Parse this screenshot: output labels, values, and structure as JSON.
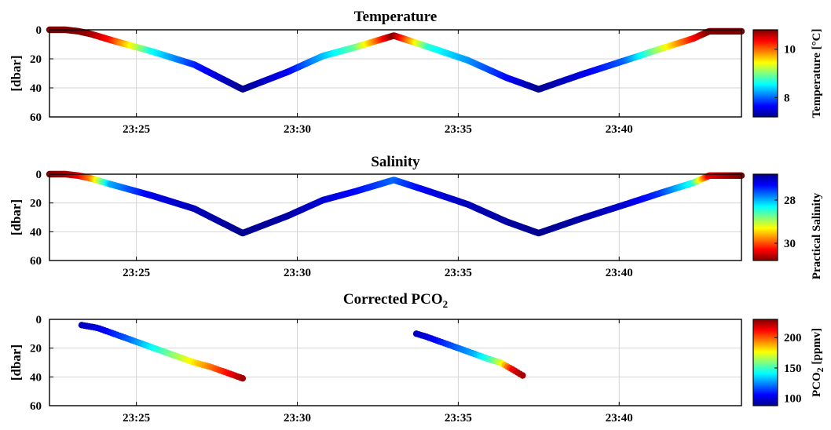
{
  "chart_data": [
    {
      "type": "scatter",
      "title": "Temperature",
      "title_sub": "",
      "ylabel": "[dbar]",
      "x_ticks": [
        "23:25",
        "23:30",
        "23:35",
        "23:40"
      ],
      "x_tick_minutes": [
        25,
        30,
        35,
        40
      ],
      "xlim_minutes": [
        22.3,
        43.8
      ],
      "y_ticks": [
        "0",
        "20",
        "40",
        "60"
      ],
      "y_tick_values": [
        0,
        20,
        40,
        60
      ],
      "ylim": [
        0,
        60
      ],
      "y_reversed": true,
      "grid": true,
      "colorbar": {
        "label": "Temperature [°C]",
        "ticks": [
          "10",
          "8"
        ],
        "tick_values": [
          10,
          8
        ],
        "range": [
          7.2,
          10.8
        ],
        "colormap": "jet",
        "reversed": false
      },
      "series": [
        {
          "x_minutes": [
            22.3,
            22.8,
            23.2,
            23.6,
            24.2,
            25.5,
            26.8,
            28.3,
            29.7,
            30.8,
            31.8,
            33.0,
            34.1,
            35.3,
            36.5,
            37.5,
            38.8,
            40.2,
            41.3,
            42.3,
            42.8,
            43.8
          ],
          "depth": [
            0,
            0,
            1,
            3,
            7,
            15,
            24,
            41,
            29,
            18,
            12,
            4,
            12,
            21,
            33,
            41,
            31,
            21,
            13,
            6,
            1,
            1
          ],
          "value": [
            10.8,
            10.8,
            10.8,
            10.7,
            10.3,
            8.6,
            7.8,
            7.2,
            7.6,
            8.3,
            8.9,
            10.8,
            8.7,
            8.2,
            7.7,
            7.2,
            7.5,
            8.0,
            9.2,
            10.3,
            10.8,
            10.8
          ]
        }
      ]
    },
    {
      "type": "scatter",
      "title": "Salinity",
      "title_sub": "",
      "ylabel": "[dbar]",
      "x_ticks": [
        "23:25",
        "23:30",
        "23:35",
        "23:40"
      ],
      "x_tick_minutes": [
        25,
        30,
        35,
        40
      ],
      "xlim_minutes": [
        22.3,
        43.8
      ],
      "y_ticks": [
        "0",
        "20",
        "40",
        "60"
      ],
      "y_tick_values": [
        0,
        20,
        40,
        60
      ],
      "ylim": [
        0,
        60
      ],
      "y_reversed": true,
      "grid": true,
      "colorbar": {
        "label": "Practical Salinity",
        "ticks": [
          "28",
          "30"
        ],
        "tick_values": [
          28,
          30
        ],
        "range": [
          26.8,
          30.8
        ],
        "colormap": "jet",
        "reversed": true
      },
      "series": [
        {
          "x_minutes": [
            22.3,
            22.8,
            23.2,
            23.6,
            24.2,
            25.5,
            26.8,
            28.3,
            29.7,
            30.8,
            31.8,
            33.0,
            34.1,
            35.3,
            36.5,
            37.5,
            38.8,
            40.2,
            41.3,
            42.3,
            42.8,
            43.8
          ],
          "depth": [
            0,
            0,
            1,
            3,
            7,
            15,
            24,
            41,
            29,
            18,
            12,
            4,
            12,
            21,
            33,
            41,
            31,
            21,
            13,
            6,
            1,
            1
          ],
          "value": [
            26.8,
            26.9,
            27.2,
            27.8,
            29.6,
            30.4,
            30.6,
            30.8,
            30.7,
            30.5,
            30.3,
            29.9,
            30.4,
            30.6,
            30.7,
            30.8,
            30.7,
            30.5,
            30.1,
            29.2,
            27.2,
            26.8
          ]
        }
      ]
    },
    {
      "type": "scatter",
      "title": "Corrected PCO",
      "title_sub": "2",
      "ylabel": "[dbar]",
      "x_ticks": [
        "23:25",
        "23:30",
        "23:35",
        "23:40"
      ],
      "x_tick_minutes": [
        25,
        30,
        35,
        40
      ],
      "xlim_minutes": [
        22.3,
        43.8
      ],
      "y_ticks": [
        "0",
        "20",
        "40",
        "60"
      ],
      "y_tick_values": [
        0,
        20,
        40,
        60
      ],
      "ylim": [
        0,
        60
      ],
      "y_reversed": true,
      "grid": true,
      "colorbar": {
        "label": "PCO",
        "label_sub": "2",
        "label_suffix": " [ppmv]",
        "ticks": [
          "200",
          "150",
          "100"
        ],
        "tick_values": [
          200,
          150,
          100
        ],
        "range": [
          88,
          230
        ],
        "colormap": "jet",
        "reversed": false
      },
      "series": [
        {
          "x_minutes": [
            23.3,
            23.8,
            24.3,
            24.8,
            25.3,
            25.8,
            26.3,
            26.8,
            27.3,
            27.8,
            28.3
          ],
          "depth": [
            4,
            6,
            10,
            14,
            18,
            22,
            26,
            30,
            33,
            37,
            41
          ],
          "value": [
            95,
            100,
            110,
            120,
            135,
            150,
            165,
            180,
            195,
            210,
            225
          ]
        },
        {
          "x_minutes": [
            33.7,
            34.0,
            34.5,
            35.0,
            35.5,
            36.0,
            36.3,
            36.7,
            37.0
          ],
          "depth": [
            10,
            12,
            16,
            20,
            24,
            28,
            30,
            35,
            39
          ],
          "value": [
            95,
            100,
            110,
            120,
            130,
            150,
            170,
            215,
            225
          ]
        }
      ]
    }
  ]
}
